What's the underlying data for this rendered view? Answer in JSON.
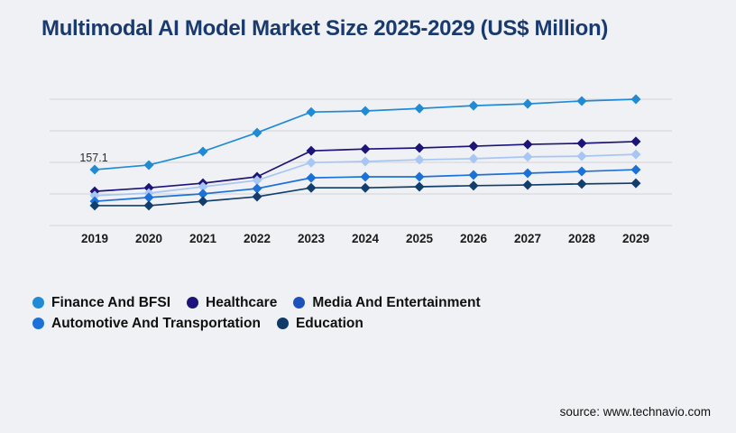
{
  "title": {
    "text": "Multimodal AI Model Market Size 2025-2029 (US$ Million)"
  },
  "source": {
    "text": "source: www.technavio.com"
  },
  "colors": {
    "background": "#f0f1f4",
    "gridline": "#d2d3d6",
    "tick_label": "#1b1b1b",
    "annotation_label": "#2b2b2b",
    "title": "#1a3a6e"
  },
  "chart_data": {
    "type": "line",
    "title": "Multimodal AI Model Market Size 2025-2029 (US$ Million)",
    "xlabel": "",
    "ylabel": "",
    "x": [
      2019,
      2020,
      2021,
      2022,
      2023,
      2024,
      2025,
      2026,
      2027,
      2028,
      2029
    ],
    "ylim": [
      0,
      355
    ],
    "grid": true,
    "gridline_count": 5,
    "y_axis_labels_shown": false,
    "legend_position": "bottom-left",
    "marker": "diamond",
    "annotations": [
      {
        "series": "Finance And BFSI",
        "x": 2019,
        "text": "157.1"
      }
    ],
    "series": [
      {
        "name": "Finance And BFSI",
        "color": "#208bd4",
        "legend_color": "#208bd4",
        "values": [
          157.1,
          170,
          208,
          261,
          319,
          322,
          329,
          337,
          342,
          350,
          355
        ]
      },
      {
        "name": "Healthcare",
        "color": "#1c1478",
        "legend_color": "#1c1478",
        "values": [
          96,
          106,
          119,
          137,
          210,
          215,
          218,
          223,
          228,
          231,
          236
        ]
      },
      {
        "name": "Media And Entertainment",
        "color": "#a8c6f3",
        "legend_color": "#1d4fbd",
        "values": [
          84,
          91,
          109,
          127,
          177,
          180,
          185,
          188,
          193,
          195,
          200
        ]
      },
      {
        "name": "Automotive And Transportation",
        "color": "#1c71d9",
        "legend_color": "#1c71d9",
        "values": [
          68,
          79,
          89,
          104,
          134,
          137,
          137,
          142,
          147,
          152,
          157
        ]
      },
      {
        "name": "Education",
        "color": "#123e6c",
        "legend_color": "#0d3a69",
        "values": [
          56,
          56,
          68,
          81,
          106,
          106,
          109,
          112,
          114,
          117,
          119
        ]
      }
    ],
    "legend_rows": [
      [
        0,
        1,
        2
      ],
      [
        3,
        4
      ]
    ]
  }
}
